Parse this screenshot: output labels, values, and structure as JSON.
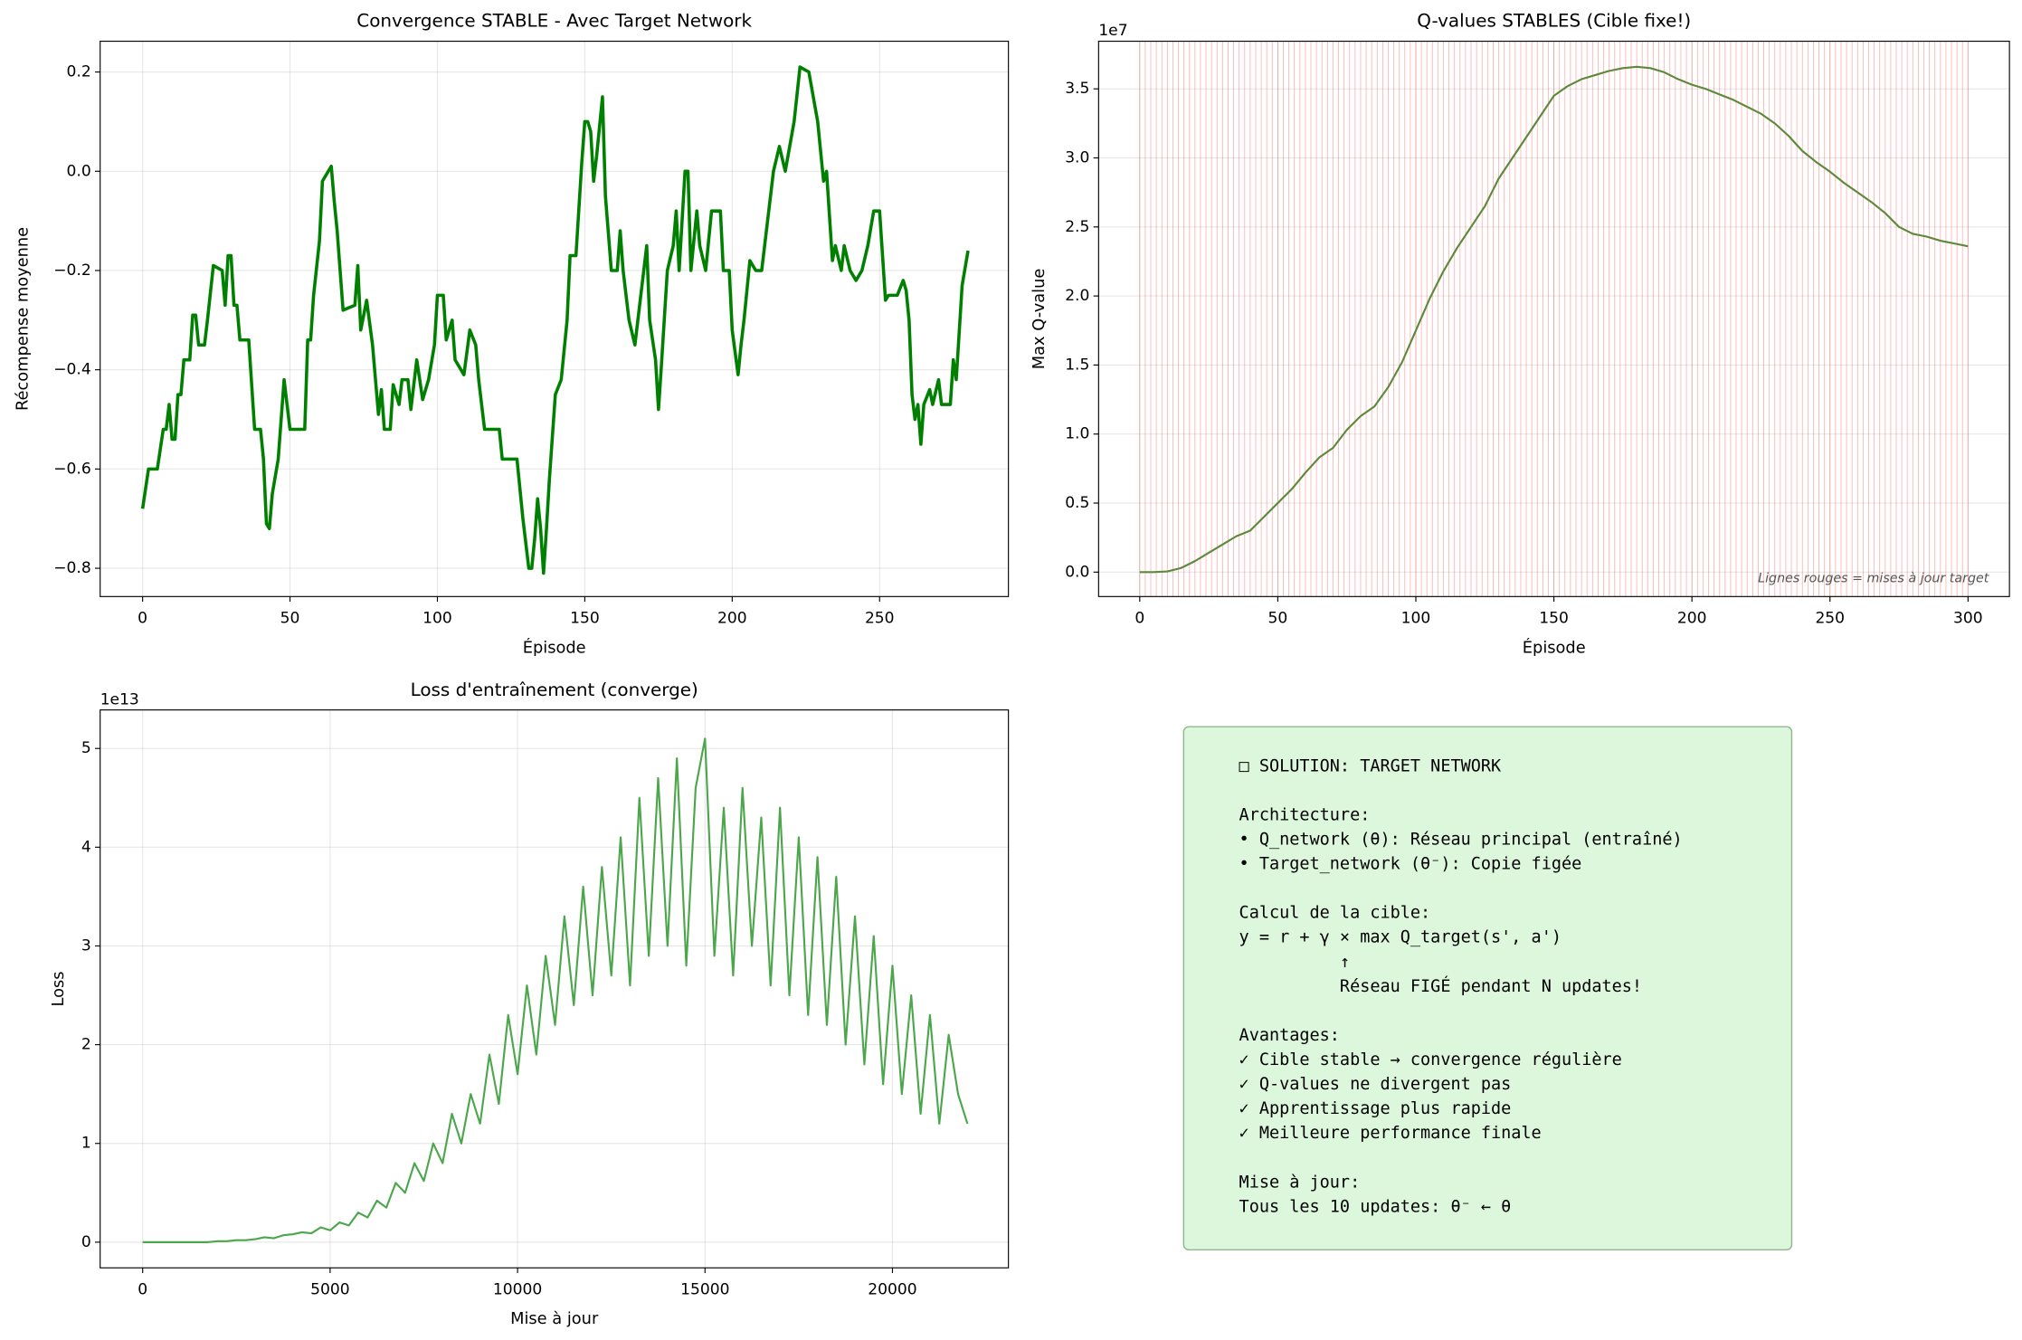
{
  "chart_data": [
    {
      "type": "line",
      "title": "Convergence STABLE - Avec Target Network",
      "xlabel": "Épisode",
      "ylabel": "Récompense moyenne",
      "x": [
        0,
        2,
        5,
        7,
        8,
        9,
        10,
        11,
        12,
        13,
        14,
        16,
        17,
        18,
        19,
        21,
        22,
        24,
        27,
        28,
        29,
        30,
        31,
        32,
        33,
        36,
        38,
        40,
        41,
        42,
        43,
        44,
        46,
        48,
        50,
        55,
        56,
        57,
        58,
        60,
        61,
        63,
        64,
        65,
        66,
        67,
        68,
        72,
        73,
        74,
        76,
        78,
        80,
        81,
        82,
        84,
        85,
        87,
        88,
        90,
        91,
        93,
        95,
        97,
        99,
        100,
        102,
        103,
        105,
        106,
        109,
        111,
        113,
        114,
        116,
        121,
        122,
        127,
        129,
        131,
        132,
        133,
        134,
        135,
        136,
        137,
        138,
        140,
        142,
        144,
        145,
        147,
        149,
        150,
        151,
        152,
        153,
        154,
        156,
        157,
        159,
        161,
        162,
        163,
        165,
        167,
        168,
        170,
        171,
        172,
        174,
        175,
        176,
        178,
        180,
        181,
        182,
        184,
        185,
        186,
        188,
        189,
        191,
        193,
        196,
        197,
        199,
        200,
        202,
        203,
        204,
        206,
        208,
        210,
        212,
        214,
        216,
        218,
        221,
        223,
        226,
        229,
        231,
        232,
        234,
        235,
        237,
        238,
        240,
        242,
        244,
        246,
        248,
        250,
        252,
        253,
        256,
        258,
        259,
        260,
        261,
        262,
        263,
        264,
        265,
        267,
        268,
        270,
        271,
        274,
        275,
        276,
        278,
        280
      ],
      "series": [
        {
          "color": "#008000",
          "values": [
            -0.68,
            -0.6,
            -0.6,
            -0.52,
            -0.52,
            -0.47,
            -0.54,
            -0.54,
            -0.45,
            -0.45,
            -0.38,
            -0.38,
            -0.29,
            -0.29,
            -0.35,
            -0.35,
            -0.3,
            -0.19,
            -0.2,
            -0.27,
            -0.17,
            -0.17,
            -0.27,
            -0.27,
            -0.34,
            -0.34,
            -0.52,
            -0.52,
            -0.58,
            -0.71,
            -0.72,
            -0.65,
            -0.58,
            -0.42,
            -0.52,
            -0.52,
            -0.34,
            -0.34,
            -0.25,
            -0.14,
            -0.02,
            0.0,
            0.01,
            -0.06,
            -0.12,
            -0.2,
            -0.28,
            -0.27,
            -0.19,
            -0.32,
            -0.26,
            -0.35,
            -0.49,
            -0.44,
            -0.52,
            -0.52,
            -0.43,
            -0.47,
            -0.42,
            -0.42,
            -0.48,
            -0.38,
            -0.46,
            -0.42,
            -0.35,
            -0.25,
            -0.25,
            -0.34,
            -0.3,
            -0.38,
            -0.41,
            -0.32,
            -0.35,
            -0.42,
            -0.52,
            -0.52,
            -0.58,
            -0.58,
            -0.7,
            -0.8,
            -0.8,
            -0.74,
            -0.66,
            -0.72,
            -0.81,
            -0.72,
            -0.62,
            -0.45,
            -0.42,
            -0.3,
            -0.17,
            -0.17,
            0.02,
            0.1,
            0.1,
            0.08,
            -0.02,
            0.03,
            0.15,
            -0.05,
            -0.2,
            -0.2,
            -0.12,
            -0.2,
            -0.3,
            -0.35,
            -0.3,
            -0.2,
            -0.15,
            -0.3,
            -0.38,
            -0.48,
            -0.39,
            -0.2,
            -0.15,
            -0.08,
            -0.2,
            0.0,
            0.0,
            -0.2,
            -0.08,
            -0.15,
            -0.2,
            -0.08,
            -0.08,
            -0.2,
            -0.2,
            -0.32,
            -0.41,
            -0.35,
            -0.3,
            -0.18,
            -0.2,
            -0.2,
            -0.1,
            0.0,
            0.05,
            0.0,
            0.1,
            0.21,
            0.2,
            0.1,
            -0.02,
            0.0,
            -0.18,
            -0.15,
            -0.2,
            -0.15,
            -0.2,
            -0.22,
            -0.2,
            -0.15,
            -0.08,
            -0.08,
            -0.26,
            -0.25,
            -0.25,
            -0.22,
            -0.24,
            -0.3,
            -0.45,
            -0.5,
            -0.47,
            -0.55,
            -0.47,
            -0.44,
            -0.47,
            -0.42,
            -0.47,
            -0.47,
            -0.38,
            -0.42,
            -0.23,
            -0.16
          ]
        }
      ],
      "xlim": [
        -14.4,
        293.7
      ],
      "ylim": [
        -0.857,
        0.262
      ],
      "xticks": [
        0,
        50,
        100,
        150,
        200,
        250
      ],
      "yticks": [
        {
          "value": -0.8,
          "label": "−0.8"
        },
        {
          "value": -0.6,
          "label": "−0.6"
        },
        {
          "value": -0.4,
          "label": "−0.4"
        },
        {
          "value": -0.2,
          "label": "−0.2"
        },
        {
          "value": 0,
          "label": "0.0"
        },
        0.2
      ],
      "grid": true
    },
    {
      "type": "line",
      "title": "Q-values STABLES (Cible fixe!)",
      "xlabel": "Épisode",
      "ylabel": "Max Q-value",
      "y_offset_label": "1e7",
      "annotation": "Lignes rouges = mises à jour target",
      "x": [
        0,
        5,
        10,
        15,
        20,
        25,
        30,
        35,
        40,
        45,
        50,
        55,
        60,
        65,
        70,
        75,
        80,
        85,
        90,
        95,
        100,
        105,
        110,
        115,
        120,
        125,
        130,
        135,
        140,
        145,
        150,
        155,
        160,
        165,
        170,
        175,
        180,
        185,
        190,
        195,
        200,
        205,
        210,
        215,
        220,
        225,
        230,
        235,
        240,
        245,
        250,
        255,
        260,
        265,
        270,
        275,
        280,
        285,
        290,
        295,
        300
      ],
      "series": [
        {
          "color": "#5b8a3c",
          "values": [
            0,
            0,
            50000.0,
            300000.0,
            800000.0,
            1400000.0,
            2000000.0,
            2600000.0,
            3000000.0,
            4000000.0,
            5000000.0,
            6000000.0,
            7200000.0,
            8300000.0,
            9000000.0,
            10300000.0,
            11300000.0,
            12000000.0,
            13400000.0,
            15200000.0,
            17500000.0,
            19800000.0,
            21800000.0,
            23500000.0,
            25000000.0,
            26500000.0,
            28500000.0,
            30000000.0,
            31500000.0,
            33000000.0,
            34500000.0,
            35200000.0,
            35700000.0,
            36000000.0,
            36300000.0,
            36500000.0,
            36600000.0,
            36500000.0,
            36200000.0,
            35700000.0,
            35300000.0,
            35000000.0,
            34600000.0,
            34200000.0,
            33700000.0,
            33200000.0,
            32500000.0,
            31600000.0,
            30500000.0,
            29700000.0,
            29000000.0,
            28200000.0,
            27500000.0,
            26800000.0,
            26000000.0,
            25000000.0,
            24500000.0,
            24300000.0,
            24000000.0,
            23800000.0,
            23600000.0
          ]
        }
      ],
      "vlines": {
        "color": "#ff0000",
        "x": [
          0,
          2,
          4,
          6,
          8,
          10,
          12,
          14,
          16,
          18,
          20,
          22,
          24,
          26,
          28,
          30,
          32,
          34,
          36,
          38,
          40,
          42,
          44,
          46,
          48,
          50,
          52,
          54,
          56,
          58,
          60,
          62,
          64,
          66,
          68,
          70,
          72,
          74,
          76,
          78,
          80,
          82,
          84,
          86,
          88,
          90,
          92,
          94,
          96,
          98,
          100,
          102,
          104,
          106,
          108,
          110,
          112,
          114,
          116,
          118,
          120,
          122,
          124,
          126,
          128,
          130,
          132,
          134,
          136,
          138,
          140,
          142,
          144,
          146,
          148,
          150,
          152,
          154,
          156,
          158,
          160,
          162,
          164,
          166,
          168,
          170,
          172,
          174,
          176,
          178,
          180,
          182,
          184,
          186,
          188,
          190,
          192,
          194,
          196,
          198,
          200,
          202,
          204,
          206,
          208,
          210,
          212,
          214,
          216,
          218,
          220,
          222,
          224,
          226,
          228,
          230,
          232,
          234,
          236,
          238,
          240,
          242,
          244,
          246,
          248,
          250,
          252,
          254,
          256,
          258,
          260,
          262,
          264,
          266,
          268,
          270,
          272,
          274,
          276,
          278,
          280,
          282,
          284,
          286,
          288,
          290,
          292,
          294,
          296,
          298,
          300
        ]
      },
      "xlim": [
        -14.9,
        315
      ],
      "ylim": [
        -1770000.0,
        38450000.0
      ],
      "xticks": [
        0,
        50,
        100,
        150,
        200,
        250,
        300
      ],
      "yticks": [
        {
          "value": 0,
          "label": "0.0"
        },
        {
          "value": 5000000.0,
          "label": "0.5"
        },
        {
          "value": 10000000.0,
          "label": "1.0"
        },
        {
          "value": 15000000.0,
          "label": "1.5"
        },
        {
          "value": 20000000.0,
          "label": "2.0"
        },
        {
          "value": 25000000.0,
          "label": "2.5"
        },
        {
          "value": 30000000.0,
          "label": "3.0"
        },
        {
          "value": 35000000.0,
          "label": "3.5"
        }
      ],
      "grid": true
    },
    {
      "type": "line",
      "title": "Loss d'entraînement (converge)",
      "xlabel": "Mise à jour",
      "ylabel": "Loss",
      "y_offset_label": "1e13",
      "x": [
        0,
        250,
        500,
        750,
        1000,
        1250,
        1500,
        1750,
        2000,
        2250,
        2500,
        2750,
        3000,
        3250,
        3500,
        3750,
        4000,
        4250,
        4500,
        4750,
        5000,
        5250,
        5500,
        5750,
        6000,
        6250,
        6500,
        6750,
        7000,
        7250,
        7500,
        7750,
        8000,
        8250,
        8500,
        8750,
        9000,
        9250,
        9500,
        9750,
        10000,
        10250,
        10500,
        10750,
        11000,
        11250,
        11500,
        11750,
        12000,
        12250,
        12500,
        12750,
        13000,
        13250,
        13500,
        13750,
        14000,
        14250,
        14500,
        14750,
        15000,
        15250,
        15500,
        15750,
        16000,
        16250,
        16500,
        16750,
        17000,
        17250,
        17500,
        17750,
        18000,
        18250,
        18500,
        18750,
        19000,
        19250,
        19500,
        19750,
        20000,
        20250,
        20500,
        20750,
        21000,
        21250,
        21500,
        21750,
        22000
      ],
      "series": [
        {
          "color": "#4ca64c",
          "values": [
            0,
            0,
            0,
            0,
            0,
            0,
            0,
            0,
            100000000000.0,
            100000000000.0,
            200000000000.0,
            200000000000.0,
            300000000000.0,
            500000000000.0,
            400000000000.0,
            700000000000.0,
            800000000000.0,
            1000000000000.0,
            900000000000.0,
            1500000000000.0,
            1200000000000.0,
            2000000000000.0,
            1700000000000.0,
            3000000000000.0,
            2500000000000.0,
            4200000000000.0,
            3500000000000.0,
            6000000000000.0,
            5000000000000.0,
            8000000000000.0,
            6200000000000.0,
            10000000000000.0,
            8000000000000.0,
            13000000000000.0,
            10000000000000.0,
            15000000000000.0,
            12000000000000.0,
            19000000000000.0,
            14000000000000.0,
            23000000000000.0,
            17000000000000.0,
            26000000000000.0,
            19000000000000.0,
            29000000000000.0,
            22000000000000.0,
            33000000000000.0,
            24000000000000.0,
            36000000000000.0,
            25000000000000.0,
            38000000000000.0,
            27000000000000.0,
            41000000000000.0,
            26000000000000.0,
            45000000000000.0,
            29000000000000.0,
            47000000000000.0,
            30000000000000.0,
            49000000000000.0,
            28000000000000.0,
            46000000000000.0,
            51000000000000.0,
            29000000000000.0,
            44000000000000.0,
            27000000000000.0,
            46000000000000.0,
            30000000000000.0,
            43000000000000.0,
            26000000000000.0,
            44000000000000.0,
            25000000000000.0,
            41000000000000.0,
            23000000000000.0,
            39000000000000.0,
            22000000000000.0,
            37000000000000.0,
            20000000000000.0,
            33000000000000.0,
            18000000000000.0,
            31000000000000.0,
            16000000000000.0,
            28000000000000.0,
            15000000000000.0,
            25000000000000.0,
            13000000000000.0,
            23000000000000.0,
            12000000000000.0,
            21000000000000.0,
            15000000000000.0,
            12000000000000.0
          ]
        }
      ],
      "xlim": [
        -1134,
        23093
      ],
      "ylim": [
        -2600000000000.0,
        53900000000000.0
      ],
      "xticks": [
        0,
        5000,
        10000,
        15000,
        20000
      ],
      "yticks": [
        0,
        {
          "value": 10000000000000.0,
          "label": "1"
        },
        {
          "value": 20000000000000.0,
          "label": "2"
        },
        {
          "value": 30000000000000.0,
          "label": "3"
        },
        {
          "value": 40000000000000.0,
          "label": "4"
        },
        {
          "value": 50000000000000.0,
          "label": "5"
        }
      ],
      "grid": true
    }
  ],
  "text_box": {
    "blocks": [
      [
        "□ SOLUTION: TARGET NETWORK"
      ],
      [
        "Architecture:",
        "• Q_network (θ): Réseau principal (entraîné)",
        "• Target_network (θ⁻): Copie figée"
      ],
      [
        "Calcul de la cible:",
        "y = r + γ × max Q_target(s', a')",
        "          ↑",
        "          Réseau FIGÉ pendant N updates!"
      ],
      [
        "Avantages:",
        "✓ Cible stable → convergence régulière",
        "✓ Q-values ne divergent pas",
        "✓ Apprentissage plus rapide",
        "✓ Meilleure performance finale"
      ],
      [
        "Mise à jour:",
        "Tous les 10 updates: θ⁻ ← θ"
      ]
    ]
  }
}
